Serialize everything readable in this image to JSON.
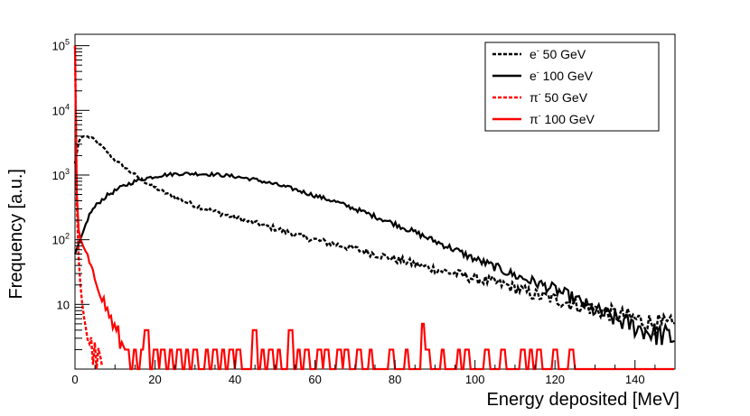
{
  "chart_data": {
    "type": "line",
    "title": "",
    "xlabel": "Energy deposited [MeV]",
    "ylabel": "Frequency [a.u.]",
    "xlim": [
      0,
      150
    ],
    "ylim_log": [
      1,
      150000
    ],
    "x_major_ticks": [
      0,
      20,
      40,
      60,
      80,
      100,
      120,
      140
    ],
    "x_tick_labels": [
      "0",
      "20",
      "40",
      "60",
      "80",
      "100",
      "120",
      "140"
    ],
    "y_tick_labels": [
      {
        "value": 10,
        "base": "10",
        "exp": ""
      },
      {
        "value": 100,
        "base": "10",
        "exp": "2"
      },
      {
        "value": 1000,
        "base": "10",
        "exp": "3"
      },
      {
        "value": 10000,
        "base": "10",
        "exp": "4"
      },
      {
        "value": 100000,
        "base": "10",
        "exp": "5"
      }
    ],
    "legend_position": "top-right",
    "series": [
      {
        "name": "e- 50 GeV",
        "label_base": "e",
        "label_sup": "-",
        "label_rest": " 50 GeV",
        "color": "#000000",
        "dashed": true,
        "x": [
          0,
          1,
          2,
          4,
          6,
          8,
          10,
          14,
          18,
          22,
          26,
          30,
          35,
          40,
          45,
          50,
          55,
          60,
          65,
          70,
          75,
          80,
          85,
          90,
          95,
          100,
          105,
          110,
          115,
          120,
          125,
          130,
          135,
          140,
          145,
          150
        ],
        "y": [
          1500,
          3500,
          4000,
          3800,
          3000,
          2300,
          1700,
          1100,
          750,
          550,
          420,
          340,
          270,
          220,
          180,
          150,
          120,
          100,
          85,
          72,
          60,
          50,
          42,
          35,
          30,
          25,
          22,
          18,
          14,
          12,
          10,
          8.5,
          7,
          6,
          5,
          4.5
        ]
      },
      {
        "name": "e- 100 GeV",
        "label_base": "e",
        "label_sup": "-",
        "label_rest": " 100 GeV",
        "color": "#000000",
        "dashed": false,
        "x": [
          0,
          1,
          2,
          3,
          4,
          6,
          8,
          10,
          12,
          15,
          18,
          22,
          26,
          30,
          35,
          40,
          45,
          50,
          55,
          60,
          65,
          70,
          75,
          80,
          85,
          90,
          95,
          100,
          105,
          110,
          115,
          120,
          125,
          130,
          135,
          140,
          145,
          150
        ],
        "y": [
          60,
          90,
          130,
          200,
          270,
          380,
          480,
          570,
          670,
          800,
          900,
          1000,
          1050,
          1050,
          1020,
          950,
          850,
          720,
          600,
          480,
          390,
          300,
          230,
          175,
          130,
          95,
          70,
          50,
          38,
          28,
          22,
          17,
          12,
          8,
          6,
          4.5,
          3.5,
          3
        ]
      },
      {
        "name": "π- 50 GeV",
        "label_base": "π",
        "label_sup": "-",
        "label_rest": " 50 GeV",
        "color": "#ff0000",
        "dashed": true,
        "x": [
          0,
          0.5,
          1,
          1.5,
          2,
          2.5,
          3,
          4,
          5,
          6,
          7
        ],
        "y": [
          100000,
          200,
          40,
          15,
          8,
          5,
          3.5,
          2.2,
          1.5,
          1.2,
          1
        ]
      },
      {
        "name": "π- 100 GeV",
        "label_base": "π",
        "label_sup": "-",
        "label_rest": " 100 GeV",
        "color": "#ff0000",
        "dashed": false,
        "x": [
          0,
          0.5,
          1,
          2,
          3,
          4,
          5,
          6,
          7,
          8,
          9,
          10,
          11,
          12
        ],
        "y": [
          100000,
          300,
          120,
          80,
          60,
          35,
          25,
          18,
          12,
          8,
          6,
          4,
          3,
          2
        ],
        "spikes_x": [
          13,
          15,
          17,
          18,
          20,
          22,
          24,
          26,
          28,
          30,
          33,
          35,
          37,
          39,
          41,
          45,
          47,
          49,
          51,
          54,
          56,
          58,
          61,
          63,
          66,
          68,
          71,
          74,
          79,
          83,
          87,
          88,
          92,
          96,
          98,
          103,
          107,
          112,
          114,
          116,
          120,
          124
        ],
        "spikes_y": [
          2,
          2,
          2,
          4,
          2,
          2,
          2,
          2,
          2,
          2,
          2,
          2,
          2,
          2,
          2,
          4,
          2,
          2,
          2,
          4,
          2,
          2,
          2,
          2,
          2,
          2,
          2,
          2,
          2,
          2,
          5,
          2,
          2,
          2,
          2,
          2,
          2,
          2,
          2,
          2,
          2,
          2
        ]
      }
    ]
  }
}
